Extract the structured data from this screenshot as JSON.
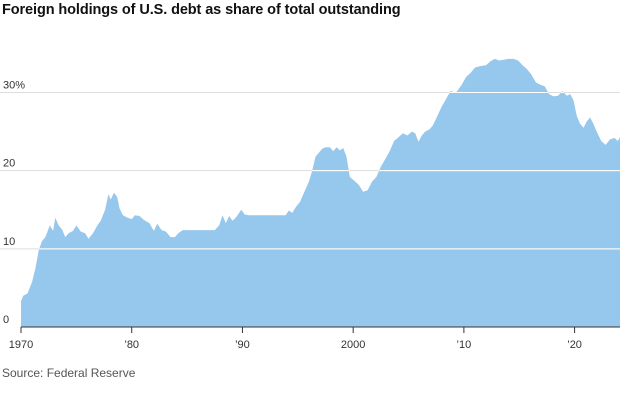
{
  "title": "Foreign holdings of U.S. debt as share of total outstanding",
  "source": "Source: Federal Reserve",
  "colors": {
    "area": "#96c8ed",
    "gridline": "#ffffff",
    "baseline": "#333333"
  },
  "chart_data": {
    "type": "area",
    "title": "Foreign holdings of U.S. debt as share of total outstanding",
    "xlabel": "",
    "ylabel": "",
    "xlim": [
      1970,
      2024.1
    ],
    "ylim": [
      0,
      38
    ],
    "grid": true,
    "x_ticks": [
      {
        "value": 1970,
        "label": "1970"
      },
      {
        "value": 1980,
        "label": "’80"
      },
      {
        "value": 1990,
        "label": "’90"
      },
      {
        "value": 2000,
        "label": "2000"
      },
      {
        "value": 2010,
        "label": "’10"
      },
      {
        "value": 2020,
        "label": "’20"
      }
    ],
    "y_ticks": [
      {
        "value": 0,
        "label": "0"
      },
      {
        "value": 10,
        "label": "10"
      },
      {
        "value": 20,
        "label": "20"
      },
      {
        "value": 30,
        "label": "30%"
      }
    ],
    "series": [
      {
        "values": [
          [
            1970.0,
            3.3
          ],
          [
            1970.2,
            4.0
          ],
          [
            1970.6,
            4.3
          ],
          [
            1971.0,
            5.8
          ],
          [
            1971.3,
            7.5
          ],
          [
            1971.6,
            9.8
          ],
          [
            1971.9,
            11.0
          ],
          [
            1972.2,
            11.5
          ],
          [
            1972.6,
            13.0
          ],
          [
            1972.9,
            12.3
          ],
          [
            1973.1,
            14.0
          ],
          [
            1973.4,
            13.0
          ],
          [
            1973.7,
            12.5
          ],
          [
            1974.0,
            11.5
          ],
          [
            1974.3,
            12.0
          ],
          [
            1974.7,
            12.3
          ],
          [
            1975.0,
            13.0
          ],
          [
            1975.4,
            12.2
          ],
          [
            1975.8,
            12.0
          ],
          [
            1976.1,
            11.3
          ],
          [
            1976.5,
            12.0
          ],
          [
            1976.9,
            13.0
          ],
          [
            1977.2,
            13.6
          ],
          [
            1977.6,
            15.0
          ],
          [
            1977.9,
            17.0
          ],
          [
            1978.1,
            16.3
          ],
          [
            1978.4,
            17.2
          ],
          [
            1978.7,
            16.6
          ],
          [
            1978.9,
            15.2
          ],
          [
            1979.2,
            14.3
          ],
          [
            1979.6,
            14.0
          ],
          [
            1980.0,
            13.8
          ],
          [
            1980.3,
            14.3
          ],
          [
            1980.7,
            14.2
          ],
          [
            1981.1,
            13.7
          ],
          [
            1981.6,
            13.3
          ],
          [
            1982.0,
            12.3
          ],
          [
            1982.3,
            13.2
          ],
          [
            1982.7,
            12.4
          ],
          [
            1983.1,
            12.2
          ],
          [
            1983.5,
            11.5
          ],
          [
            1983.9,
            11.5
          ],
          [
            1984.2,
            12.0
          ],
          [
            1984.6,
            12.4
          ],
          [
            1985.2,
            12.4
          ],
          [
            1986.0,
            12.4
          ],
          [
            1986.8,
            12.4
          ],
          [
            1987.5,
            12.4
          ],
          [
            1987.9,
            13.0
          ],
          [
            1988.2,
            14.3
          ],
          [
            1988.5,
            13.3
          ],
          [
            1988.8,
            14.2
          ],
          [
            1989.1,
            13.6
          ],
          [
            1989.4,
            14.0
          ],
          [
            1989.7,
            14.6
          ],
          [
            1989.9,
            15.0
          ],
          [
            1990.2,
            14.4
          ],
          [
            1990.6,
            14.3
          ],
          [
            1991.5,
            14.3
          ],
          [
            1992.5,
            14.3
          ],
          [
            1993.5,
            14.3
          ],
          [
            1993.9,
            14.3
          ],
          [
            1994.2,
            14.9
          ],
          [
            1994.5,
            14.6
          ],
          [
            1994.8,
            15.3
          ],
          [
            1995.2,
            16.0
          ],
          [
            1995.6,
            17.3
          ],
          [
            1996.0,
            18.6
          ],
          [
            1996.3,
            20.0
          ],
          [
            1996.6,
            21.8
          ],
          [
            1996.9,
            22.3
          ],
          [
            1997.2,
            22.8
          ],
          [
            1997.5,
            23.0
          ],
          [
            1997.9,
            23.0
          ],
          [
            1998.2,
            22.5
          ],
          [
            1998.5,
            23.0
          ],
          [
            1998.8,
            22.6
          ],
          [
            1999.1,
            22.9
          ],
          [
            1999.4,
            21.8
          ],
          [
            1999.7,
            19.2
          ],
          [
            2000.1,
            18.7
          ],
          [
            2000.5,
            18.2
          ],
          [
            2000.9,
            17.3
          ],
          [
            2001.3,
            17.5
          ],
          [
            2001.7,
            18.6
          ],
          [
            2002.1,
            19.2
          ],
          [
            2002.5,
            20.5
          ],
          [
            2002.9,
            21.5
          ],
          [
            2003.3,
            22.5
          ],
          [
            2003.7,
            23.8
          ],
          [
            2004.1,
            24.3
          ],
          [
            2004.5,
            24.8
          ],
          [
            2004.9,
            24.5
          ],
          [
            2005.3,
            25.0
          ],
          [
            2005.6,
            24.8
          ],
          [
            2005.9,
            23.7
          ],
          [
            2006.2,
            24.5
          ],
          [
            2006.5,
            25.0
          ],
          [
            2006.9,
            25.3
          ],
          [
            2007.2,
            25.8
          ],
          [
            2007.6,
            27.0
          ],
          [
            2008.0,
            28.2
          ],
          [
            2008.4,
            29.2
          ],
          [
            2008.8,
            30.2
          ],
          [
            2009.3,
            30.0
          ],
          [
            2009.8,
            31.0
          ],
          [
            2010.2,
            32.0
          ],
          [
            2010.6,
            32.5
          ],
          [
            2011.0,
            33.2
          ],
          [
            2011.5,
            33.4
          ],
          [
            2012.0,
            33.5
          ],
          [
            2012.4,
            34.0
          ],
          [
            2012.8,
            34.3
          ],
          [
            2013.2,
            34.1
          ],
          [
            2013.6,
            34.2
          ],
          [
            2014.0,
            34.3
          ],
          [
            2014.5,
            34.3
          ],
          [
            2014.9,
            34.1
          ],
          [
            2015.3,
            33.5
          ],
          [
            2015.7,
            33.0
          ],
          [
            2016.1,
            32.3
          ],
          [
            2016.5,
            31.3
          ],
          [
            2016.9,
            31.0
          ],
          [
            2017.3,
            30.8
          ],
          [
            2017.7,
            29.8
          ],
          [
            2018.1,
            29.5
          ],
          [
            2018.5,
            29.6
          ],
          [
            2018.9,
            30.2
          ],
          [
            2019.3,
            29.6
          ],
          [
            2019.6,
            29.8
          ],
          [
            2019.9,
            29.0
          ],
          [
            2020.2,
            27.0
          ],
          [
            2020.5,
            26.0
          ],
          [
            2020.8,
            25.5
          ],
          [
            2021.1,
            26.3
          ],
          [
            2021.4,
            26.8
          ],
          [
            2021.7,
            26.0
          ],
          [
            2022.0,
            25.0
          ],
          [
            2022.4,
            23.8
          ],
          [
            2022.8,
            23.3
          ],
          [
            2023.2,
            24.0
          ],
          [
            2023.6,
            24.2
          ],
          [
            2023.9,
            23.8
          ],
          [
            2024.1,
            24.3
          ]
        ]
      }
    ]
  }
}
